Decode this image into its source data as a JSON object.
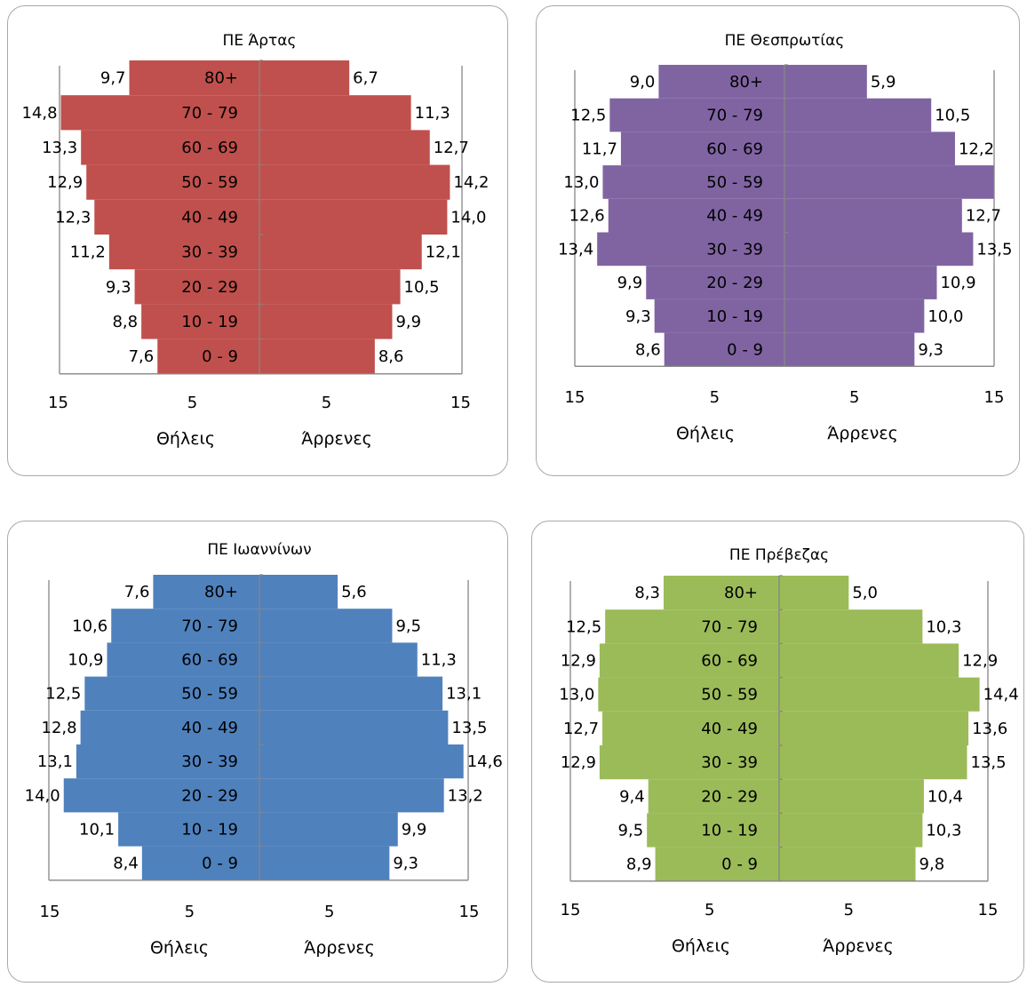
{
  "chart_data": [
    {
      "type": "bar",
      "title": "ΠΕ Άρτας",
      "color": "#c0504d",
      "categories": [
        "0 - 9",
        "10 - 19",
        "20 - 29",
        "30 - 39",
        "40 - 49",
        "50 - 59",
        "60 - 69",
        "70 - 79",
        "80+"
      ],
      "series": [
        {
          "name": "Θήλεις",
          "values": [
            7.6,
            8.8,
            9.3,
            11.2,
            12.3,
            12.9,
            13.3,
            14.8,
            9.7
          ],
          "labels": [
            "7,6",
            "8,8",
            "9,3",
            "11,2",
            "12,3",
            "12,9",
            "13,3",
            "14,8",
            "9,7"
          ]
        },
        {
          "name": "Άρρενες",
          "values": [
            8.6,
            9.9,
            10.5,
            12.1,
            14.0,
            14.2,
            12.7,
            11.3,
            6.7
          ],
          "labels": [
            "8,6",
            "9,9",
            "10,5",
            "12,1",
            "14,0",
            "14,2",
            "12,7",
            "11,3",
            "6,7"
          ]
        }
      ],
      "xticks": [
        "15",
        "5",
        "5",
        "15"
      ],
      "xlim": [
        -15,
        15
      ]
    },
    {
      "type": "bar",
      "title": "ΠΕ Θεσπρωτίας",
      "color": "#8064a2",
      "categories": [
        "0 - 9",
        "10 - 19",
        "20 - 29",
        "30 - 39",
        "40 - 49",
        "50 - 59",
        "60 - 69",
        "70 - 79",
        "80+"
      ],
      "series": [
        {
          "name": "Θήλεις",
          "values": [
            8.6,
            9.3,
            9.9,
            13.4,
            12.6,
            13.0,
            11.7,
            12.5,
            9.0
          ],
          "labels": [
            "8,6",
            "9,3",
            "9,9",
            "13,4",
            "12,6",
            "13,0",
            "11,7",
            "12,5",
            "9,0"
          ]
        },
        {
          "name": "Άρρενες",
          "values": [
            9.3,
            10.0,
            10.9,
            13.5,
            12.7,
            15.0,
            12.2,
            10.5,
            5.9
          ],
          "labels": [
            "9,3",
            "10,0",
            "10,9",
            "13,5",
            "12,7",
            "",
            "12,2",
            "10,5",
            "5,9"
          ]
        }
      ],
      "xticks": [
        "15",
        "5",
        "5",
        "15"
      ],
      "xlim": [
        -15,
        15
      ]
    },
    {
      "type": "bar",
      "title": "ΠΕ Ιωαννίνων",
      "color": "#4f81bd",
      "categories": [
        "0 - 9",
        "10 - 19",
        "20 - 29",
        "30 - 39",
        "40 - 49",
        "50 - 59",
        "60 - 69",
        "70 - 79",
        "80+"
      ],
      "series": [
        {
          "name": "Θήλεις",
          "values": [
            8.4,
            10.1,
            14.0,
            13.1,
            12.8,
            12.5,
            10.9,
            10.6,
            7.6
          ],
          "labels": [
            "8,4",
            "10,1",
            "14,0",
            "13,1",
            "12,8",
            "12,5",
            "10,9",
            "10,6",
            "7,6"
          ]
        },
        {
          "name": "Άρρενες",
          "values": [
            9.3,
            9.9,
            13.2,
            14.6,
            13.5,
            13.1,
            11.3,
            9.5,
            5.6
          ],
          "labels": [
            "9,3",
            "9,9",
            "13,2",
            "14,6",
            "13,5",
            "13,1",
            "11,3",
            "9,5",
            "5,6"
          ]
        }
      ],
      "xticks": [
        "15",
        "5",
        "5",
        "15"
      ],
      "xlim": [
        -15,
        15
      ]
    },
    {
      "type": "bar",
      "title": "ΠΕ Πρέβεζας",
      "color": "#9bbb59",
      "categories": [
        "0 - 9",
        "10 - 19",
        "20 - 29",
        "30 - 39",
        "40 - 49",
        "50 - 59",
        "60 - 69",
        "70 - 79",
        "80+"
      ],
      "series": [
        {
          "name": "Θήλεις",
          "values": [
            8.9,
            9.5,
            9.4,
            12.9,
            12.7,
            13.0,
            12.9,
            12.5,
            8.3
          ],
          "labels": [
            "8,9",
            "9,5",
            "9,4",
            "12,9",
            "12,7",
            "13,0",
            "12,9",
            "12,5",
            "8,3"
          ]
        },
        {
          "name": "Άρρενες",
          "values": [
            9.8,
            10.3,
            10.4,
            13.5,
            13.6,
            14.4,
            12.9,
            10.3,
            5.0
          ],
          "labels": [
            "9,8",
            "10,3",
            "10,4",
            "13,5",
            "13,6",
            "14,4",
            "12,9",
            "10,3",
            "5,0"
          ]
        }
      ],
      "xticks": [
        "15",
        "5",
        "5",
        "15"
      ],
      "xlim": [
        -15,
        15
      ]
    }
  ]
}
